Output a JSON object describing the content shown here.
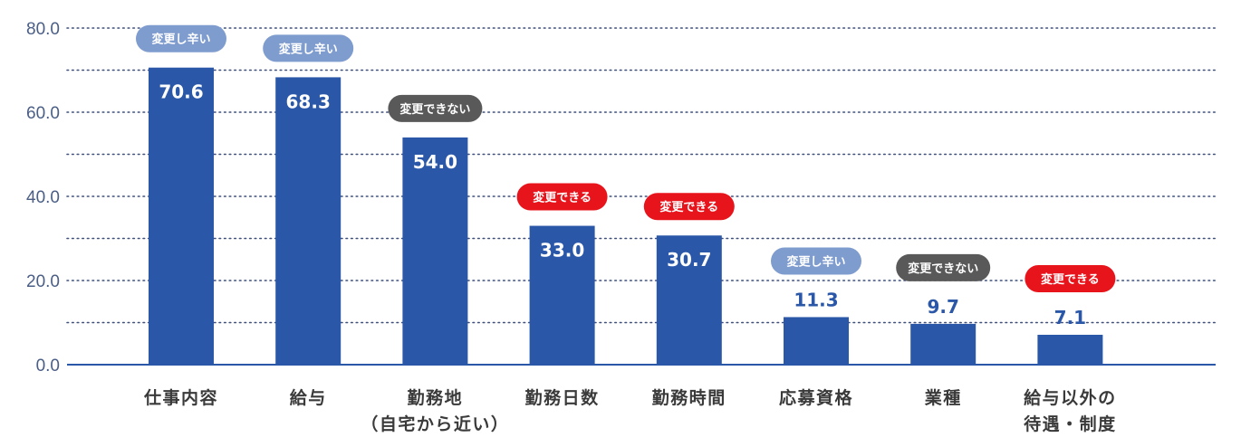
{
  "chart_data": {
    "type": "bar",
    "ylim": [
      0,
      80
    ],
    "yticks": [
      "0.0",
      "20.0",
      "40.0",
      "60.0",
      "80.0"
    ],
    "grid": true,
    "categories": [
      [
        "仕事内容"
      ],
      [
        "給与"
      ],
      [
        "勤務地",
        "（自宅から近い）"
      ],
      [
        "勤務日数"
      ],
      [
        "勤務時間"
      ],
      [
        "応募資格"
      ],
      [
        "業種"
      ],
      [
        "給与以外の",
        "待遇・制度"
      ]
    ],
    "values": [
      70.6,
      68.3,
      54.0,
      33.0,
      30.7,
      11.3,
      9.7,
      7.1
    ],
    "value_labels": [
      "70.6",
      "68.3",
      "54.0",
      "33.0",
      "30.7",
      "11.3",
      "9.7",
      "7.1"
    ],
    "badges": [
      "変更し辛い",
      "変更し辛い",
      "変更できない",
      "変更できる",
      "変更できる",
      "変更し辛い",
      "変更できない",
      "変更できる"
    ],
    "badge_colors": {
      "変更し辛い": "#7f9ccf",
      "変更できない": "#595959",
      "変更できる": "#e8141c"
    },
    "bar_color": "#2a57a7",
    "axis_color": "#2a57a7",
    "label_inside_color": "#ffffff",
    "label_outside_color": "#2a57a7"
  }
}
